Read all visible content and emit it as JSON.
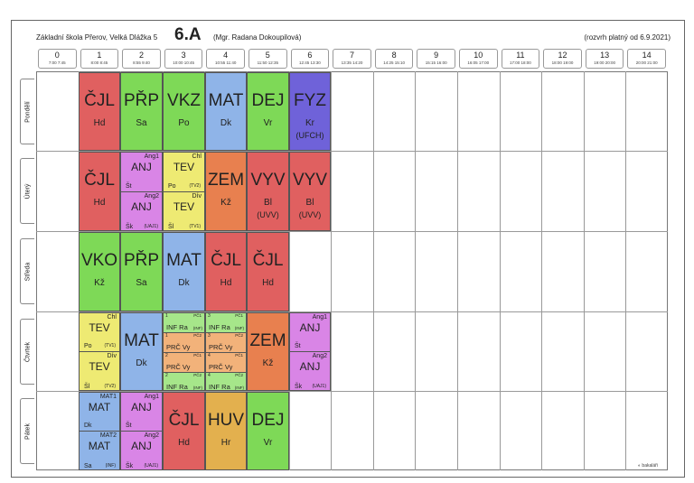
{
  "header": {
    "school": "Základní škola Přerov, Velká Dlážka 5",
    "class_name": "6.A",
    "teacher": "(Mgr. Radana Dokoupilová)",
    "valid_from": "(rozvrh platný od 6.9.2021)"
  },
  "periods": [
    {
      "n": "0",
      "t": "7:00 7:45"
    },
    {
      "n": "1",
      "t": "8:00 8:45"
    },
    {
      "n": "2",
      "t": "8:55 9:40"
    },
    {
      "n": "3",
      "t": "10:00 10:45"
    },
    {
      "n": "4",
      "t": "10:55 11:40"
    },
    {
      "n": "5",
      "t": "11:50 12:35"
    },
    {
      "n": "6",
      "t": "12:45 13:30"
    },
    {
      "n": "7",
      "t": "13:35 14:20"
    },
    {
      "n": "8",
      "t": "14:25 15:10"
    },
    {
      "n": "9",
      "t": "15:15 16:00"
    },
    {
      "n": "10",
      "t": "16:05 17:00"
    },
    {
      "n": "11",
      "t": "17:00 18:00"
    },
    {
      "n": "12",
      "t": "18:00 19:00"
    },
    {
      "n": "13",
      "t": "19:00 20:00"
    },
    {
      "n": "14",
      "t": "20:00 21:00"
    }
  ],
  "days": [
    "Pondělí",
    "Úterý",
    "Středa",
    "Čtvrtek",
    "Pátek"
  ],
  "monday": {
    "p1": {
      "s": "ČJL",
      "t": "Hd"
    },
    "p2": {
      "s": "PŘP",
      "t": "Sa"
    },
    "p3": {
      "s": "VKZ",
      "t": "Po"
    },
    "p4": {
      "s": "MAT",
      "t": "Dk"
    },
    "p5": {
      "s": "DEJ",
      "t": "Vr"
    },
    "p6": {
      "s": "FYZ",
      "t": "Kr",
      "r": "(UFCH)"
    }
  },
  "tuesday": {
    "p1": {
      "s": "ČJL",
      "t": "Hd"
    },
    "p2a": {
      "g": "Ang1",
      "s": "ANJ",
      "t": "Št"
    },
    "p2b": {
      "g": "Ang2",
      "s": "ANJ",
      "t": "Šk",
      "r": "(UAJ1)"
    },
    "p3a": {
      "g": "Chl",
      "s": "TEV",
      "t": "Po",
      "r": "(TV2)"
    },
    "p3b": {
      "g": "Dív",
      "s": "TEV",
      "t": "Šl",
      "r": "(TV1)"
    },
    "p4": {
      "s": "ZEM",
      "t": "Kž"
    },
    "p5": {
      "s": "VYV",
      "t": "Bl",
      "r": "(UVV)"
    },
    "p6": {
      "s": "VYV",
      "t": "Bl",
      "r": "(UVV)"
    }
  },
  "wednesday": {
    "p1": {
      "s": "VKO",
      "t": "Kž"
    },
    "p2": {
      "s": "PŘP",
      "t": "Sa"
    },
    "p3": {
      "s": "MAT",
      "t": "Dk"
    },
    "p4": {
      "s": "ČJL",
      "t": "Hd"
    },
    "p5": {
      "s": "ČJL",
      "t": "Hd"
    }
  },
  "thursday": {
    "p1a": {
      "g": "Chl",
      "s": "TEV",
      "t": "Po",
      "r": "(TV1)"
    },
    "p1b": {
      "g": "Dív",
      "s": "TEV",
      "t": "Šl",
      "r": "(TV2)"
    },
    "p2": {
      "s": "MAT",
      "t": "Dk"
    },
    "p3": [
      {
        "num": "1",
        "g": "PČ1",
        "s": "INF Ra",
        "r": "(INF)"
      },
      {
        "num": "1",
        "g": "PČ2",
        "s": "PRČ Vy",
        "r": ""
      },
      {
        "num": "2",
        "g": "PČ1",
        "s": "PRČ Vy",
        "r": ""
      },
      {
        "num": "2",
        "g": "PČ2",
        "s": "INF Ra",
        "r": "(INF)"
      }
    ],
    "p4": [
      {
        "num": "3",
        "g": "PČ1",
        "s": "INF Ra",
        "r": "(INF)"
      },
      {
        "num": "3",
        "g": "PČ2",
        "s": "PRČ Vy",
        "r": ""
      },
      {
        "num": "4",
        "g": "PČ1",
        "s": "PRČ Vy",
        "r": ""
      },
      {
        "num": "4",
        "g": "PČ2",
        "s": "INF Ra",
        "r": "(INF)"
      }
    ],
    "p5": {
      "s": "ZEM",
      "t": "Kž"
    },
    "p6a": {
      "g": "Ang1",
      "s": "ANJ",
      "t": "Št"
    },
    "p6b": {
      "g": "Ang2",
      "s": "ANJ",
      "t": "Šk",
      "r": "(UAJ1)"
    }
  },
  "friday": {
    "p1a": {
      "g": "MAT1",
      "s": "MAT",
      "t": "Dk"
    },
    "p1b": {
      "g": "MAT2",
      "s": "MAT",
      "t": "Sa",
      "r": "(INF)"
    },
    "p2a": {
      "g": "Ang1",
      "s": "ANJ",
      "t": "Št"
    },
    "p2b": {
      "g": "Ang2",
      "s": "ANJ",
      "t": "Šk",
      "r": "(UAJ1)"
    },
    "p3": {
      "s": "ČJL",
      "t": "Hd"
    },
    "p4": {
      "s": "HUV",
      "t": "Hr"
    },
    "p5": {
      "s": "DEJ",
      "t": "Vr"
    }
  },
  "footer": {
    "logo": "◐ bakaláři"
  },
  "colors": {
    "cjl": "#e06060",
    "green": "#7ed957",
    "mat": "#8fb4e8",
    "fyz": "#6f62d9",
    "zem": "#e8804f",
    "tev": "#eeea73",
    "anj": "#d985e6",
    "huv": "#e3b04e"
  }
}
